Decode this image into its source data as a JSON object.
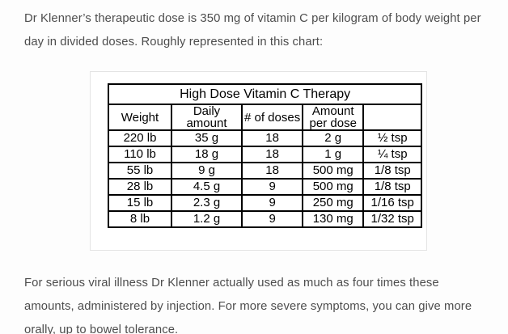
{
  "article": {
    "intro": "Dr Klenner’s therapeutic dose is 350 mg of vitamin C per kilogram of body weight per day in divided doses. Roughly represented in this chart:",
    "outro": "For serious viral illness Dr Klenner actually used as much as four times these amounts, administered by injection. For more severe symptoms, you can give more orally, up to bowel tolerance."
  },
  "chart_data": {
    "type": "table",
    "title": "High Dose Vitamin C Therapy",
    "columns": [
      "Weight",
      "Daily amount",
      "# of doses",
      "Amount per dose",
      ""
    ],
    "rows": [
      [
        "220 lb",
        "35 g",
        "18",
        "2 g",
        "½ tsp"
      ],
      [
        "110 lb",
        "18 g",
        "18",
        "1 g",
        "¼ tsp"
      ],
      [
        "55 lb",
        "9 g",
        "18",
        "500 mg",
        "1/8 tsp"
      ],
      [
        "28 lb",
        "4.5 g",
        "9",
        "500 mg",
        "1/8 tsp"
      ],
      [
        "15 lb",
        "2.3 g",
        "9",
        "250 mg",
        "1/16 tsp"
      ],
      [
        "8 lb",
        "1.2 g",
        "9",
        "130 mg",
        "1/32 tsp"
      ]
    ]
  },
  "colors": {
    "paragraph_text": "#4d4d4d",
    "table_text": "#000000",
    "table_border": "#000000",
    "image_border": "#e4e4e4",
    "background": "#fdfdfd"
  }
}
